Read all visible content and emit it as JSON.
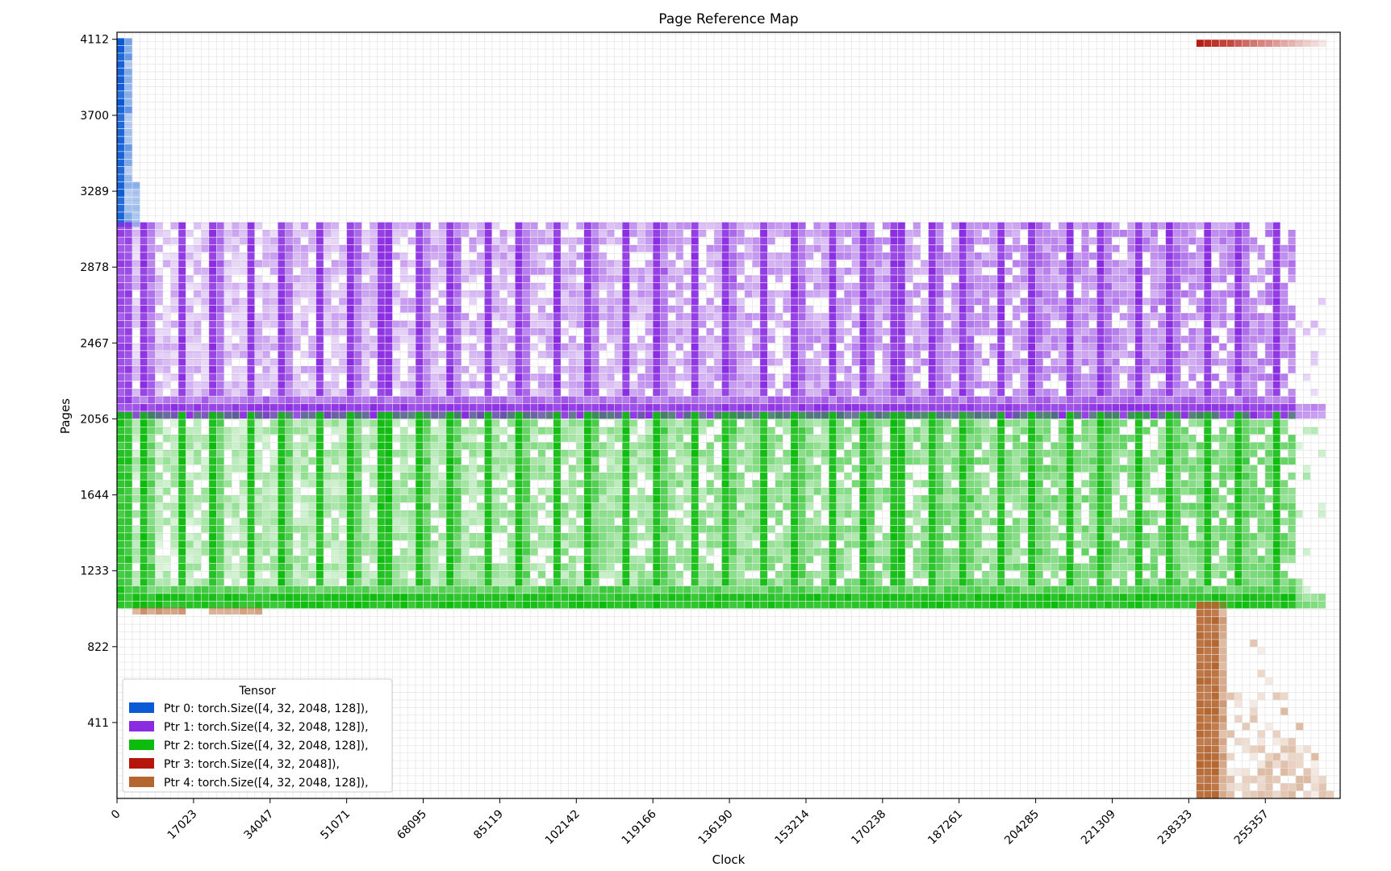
{
  "chart_data": {
    "type": "heatmap",
    "title": "Page Reference Map",
    "xlabel": "Clock",
    "ylabel": "Pages",
    "grid": true,
    "legend_title": "Tensor",
    "legend_position": "lower-left",
    "x_ticks": [
      "0",
      "17023",
      "34047",
      "51071",
      "68095",
      "85119",
      "102142",
      "119166",
      "136190",
      "153214",
      "170238",
      "187261",
      "204285",
      "221309",
      "238333",
      "255357"
    ],
    "y_ticks": [
      "411",
      "822",
      "1233",
      "1644",
      "2056",
      "2467",
      "2878",
      "3289",
      "3700",
      "4112"
    ],
    "xlim": [
      0,
      272000
    ],
    "ylim": [
      0,
      4150
    ],
    "clock_bin_width": 1702,
    "page_bin_height": 41,
    "series": [
      {
        "name": "Ptr 0: torch.Size([4, 32, 2048, 128]),",
        "color": "#0a5ad6",
        "page_range": [
          3094,
          4112
        ],
        "clock_range": [
          0,
          4500
        ],
        "pattern": "narrow vertical band at the start of the clock, dark column with lighter neighbours"
      },
      {
        "name": "Ptr 1: torch.Size([4, 32, 2048, 128]),",
        "color": "#8a2be2",
        "page_range": [
          2056,
          3094
        ],
        "clock_range": [
          0,
          266000
        ],
        "pattern": "periodic dark vertical stripes about every 7600 clock ticks, dense bottom band near 2056-2150"
      },
      {
        "name": "Ptr 2: torch.Size([4, 32, 2048, 128]),",
        "color": "#0cbc0c",
        "page_range": [
          1028,
          2056
        ],
        "clock_range": [
          0,
          266000
        ],
        "pattern": "periodic dark vertical stripes about every 7600 clock ticks, dense bottom band near 1028-1130"
      },
      {
        "name": "Ptr 3: torch.Size([4, 32, 2048]),",
        "color": "#b5150a",
        "page_range": [
          4070,
          4112
        ],
        "clock_range": [
          240000,
          268000
        ],
        "pattern": "short horizontal strip at the top right"
      },
      {
        "name": "Ptr 4: torch.Size([4, 32, 2048, 128]),",
        "color": "#b5652e",
        "page_range": [
          0,
          1028
        ],
        "clock_range": [
          240000,
          270000
        ],
        "pattern": "vertical band at the right end fanning out near page 0; short strip near page 1000 at early clock"
      }
    ]
  }
}
